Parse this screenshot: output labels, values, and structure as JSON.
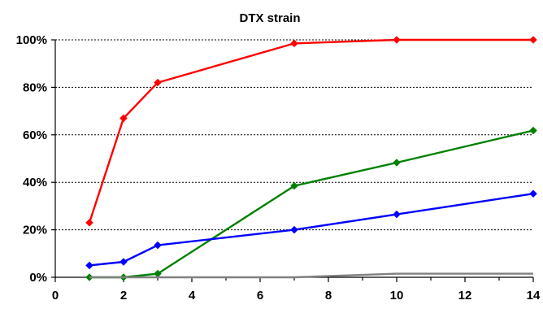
{
  "chart_data": {
    "type": "line",
    "title": "DTX strain",
    "xlabel": "",
    "ylabel": "",
    "xlim": [
      0,
      14
    ],
    "ylim": [
      0,
      100
    ],
    "x_ticks": [
      0,
      2,
      4,
      6,
      8,
      10,
      12,
      14
    ],
    "y_ticks": [
      0,
      20,
      40,
      60,
      80,
      100
    ],
    "y_tick_labels": [
      "0%",
      "20%",
      "40%",
      "60%",
      "80%",
      "100%"
    ],
    "grid": "horizontal dashed",
    "legend": "none",
    "series": [
      {
        "color": "#ff0000",
        "marker": "diamond",
        "x": [
          1,
          2,
          3,
          7,
          10,
          14
        ],
        "y": [
          23,
          67,
          82,
          98.5,
          100,
          100
        ]
      },
      {
        "color": "#008000",
        "marker": "diamond",
        "x": [
          1,
          2,
          3,
          7,
          10,
          14
        ],
        "y": [
          0,
          0,
          1.5,
          38.5,
          48.3,
          61.8
        ]
      },
      {
        "color": "#0000ff",
        "marker": "diamond",
        "x": [
          1,
          2,
          3,
          7,
          10,
          14
        ],
        "y": [
          5,
          6.5,
          13.5,
          20,
          26.5,
          35.2
        ]
      },
      {
        "color": "#808080",
        "marker": "none",
        "x": [
          1,
          2,
          3,
          7,
          10,
          14
        ],
        "y": [
          0,
          0,
          0,
          0,
          1.5,
          1.5
        ]
      }
    ]
  }
}
